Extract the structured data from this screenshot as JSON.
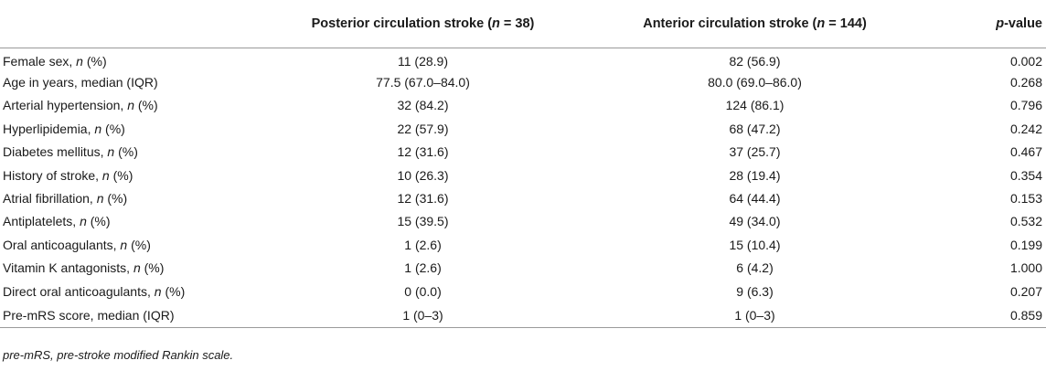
{
  "table": {
    "header": {
      "col1_prefix": "Posterior circulation stroke (",
      "col1_n": "n",
      "col1_suffix": " = 38)",
      "col2_prefix": "Anterior circulation stroke (",
      "col2_n": "n",
      "col2_suffix": " = 144)",
      "col3_p": "p",
      "col3_suffix": "-value"
    },
    "rows": [
      {
        "label_main": "Female sex, ",
        "label_n": "n",
        "label_tail": " (%)",
        "posterior": "11 (28.9)",
        "anterior": "82 (56.9)",
        "p": "0.002"
      },
      {
        "label_main": "Age in years, median (IQR)",
        "label_n": "",
        "label_tail": "",
        "posterior": "77.5 (67.0–84.0)",
        "anterior": "80.0 (69.0–86.0)",
        "p": "0.268"
      },
      {
        "label_main": "Arterial hypertension, ",
        "label_n": "n",
        "label_tail": " (%)",
        "posterior": "32 (84.2)",
        "anterior": "124 (86.1)",
        "p": "0.796"
      },
      {
        "label_main": "Hyperlipidemia, ",
        "label_n": "n",
        "label_tail": " (%)",
        "posterior": "22 (57.9)",
        "anterior": "68 (47.2)",
        "p": "0.242"
      },
      {
        "label_main": "Diabetes mellitus, ",
        "label_n": "n",
        "label_tail": " (%)",
        "posterior": "12 (31.6)",
        "anterior": "37 (25.7)",
        "p": "0.467"
      },
      {
        "label_main": "History of stroke, ",
        "label_n": "n",
        "label_tail": " (%)",
        "posterior": "10 (26.3)",
        "anterior": "28 (19.4)",
        "p": "0.354"
      },
      {
        "label_main": "Atrial fibrillation, ",
        "label_n": "n",
        "label_tail": " (%)",
        "posterior": "12 (31.6)",
        "anterior": "64 (44.4)",
        "p": "0.153"
      },
      {
        "label_main": "Antiplatelets, ",
        "label_n": "n",
        "label_tail": " (%)",
        "posterior": "15 (39.5)",
        "anterior": "49 (34.0)",
        "p": "0.532"
      },
      {
        "label_main": "Oral anticoagulants, ",
        "label_n": "n",
        "label_tail": " (%)",
        "posterior": "1 (2.6)",
        "anterior": "15 (10.4)",
        "p": "0.199"
      },
      {
        "label_main": "Vitamin K antagonists, ",
        "label_n": "n",
        "label_tail": " (%)",
        "posterior": "1 (2.6)",
        "anterior": "6 (4.2)",
        "p": "1.000"
      },
      {
        "label_main": "Direct oral anticoagulants, ",
        "label_n": "n",
        "label_tail": " (%)",
        "posterior": "0 (0.0)",
        "anterior": "9 (6.3)",
        "p": "0.207"
      },
      {
        "label_main": "Pre-mRS score, median (IQR)",
        "label_n": "",
        "label_tail": "",
        "posterior": "1 (0–3)",
        "anterior": "1 (0–3)",
        "p": "0.859"
      }
    ]
  },
  "footnote": "pre-mRS, pre-stroke modified Rankin scale."
}
